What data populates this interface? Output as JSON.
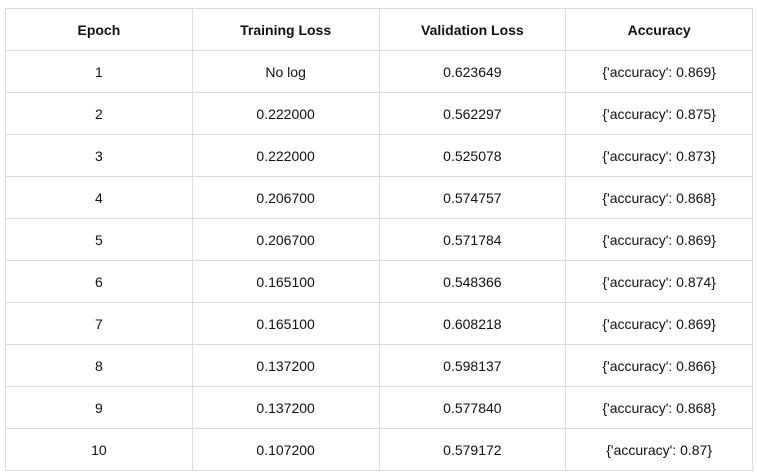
{
  "table": {
    "header": [
      "Epoch",
      "Training Loss",
      "Validation Loss",
      "Accuracy"
    ],
    "rows": [
      [
        "1",
        "No log",
        "0.623649",
        "{'accuracy': 0.869}"
      ],
      [
        "2",
        "0.222000",
        "0.562297",
        "{'accuracy': 0.875}"
      ],
      [
        "3",
        "0.222000",
        "0.525078",
        "{'accuracy': 0.873}"
      ],
      [
        "4",
        "0.206700",
        "0.574757",
        "{'accuracy': 0.868}"
      ],
      [
        "5",
        "0.206700",
        "0.571784",
        "{'accuracy': 0.869}"
      ],
      [
        "6",
        "0.165100",
        "0.548366",
        "{'accuracy': 0.874}"
      ],
      [
        "7",
        "0.165100",
        "0.608218",
        "{'accuracy': 0.869}"
      ],
      [
        "8",
        "0.137200",
        "0.598137",
        "{'accuracy': 0.866}"
      ],
      [
        "9",
        "0.137200",
        "0.577840",
        "{'accuracy': 0.868}"
      ],
      [
        "10",
        "0.107200",
        "0.579172",
        "{'accuracy': 0.87}"
      ]
    ]
  }
}
